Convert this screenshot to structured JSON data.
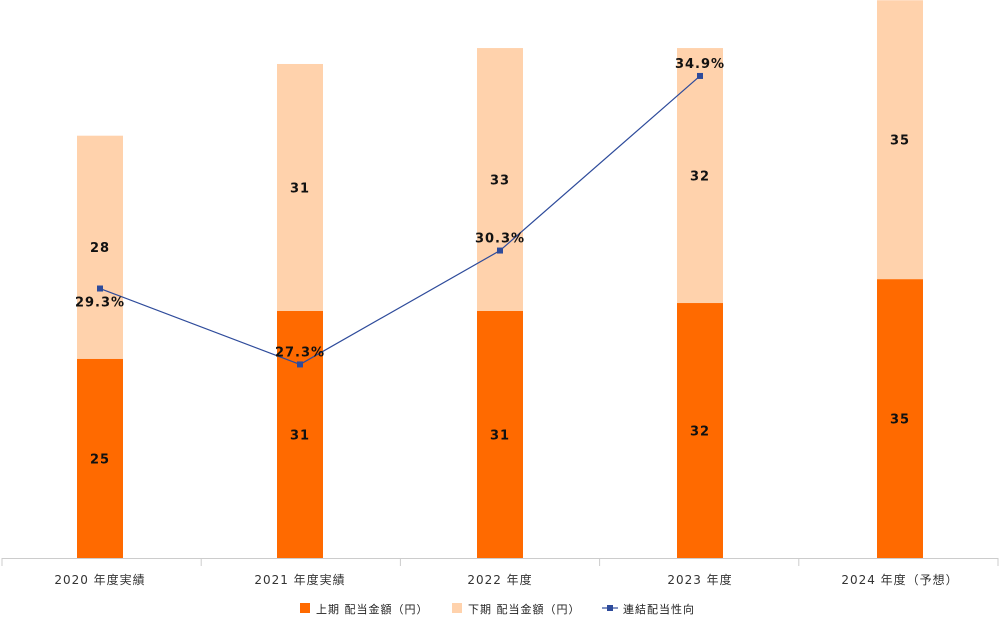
{
  "chart_data": {
    "type": "bar",
    "stacked": true,
    "categories": [
      "2020 年度実績",
      "2021 年度実績",
      "2022 年度",
      "2023 年度",
      "2024 年度（予想）"
    ],
    "series": [
      {
        "name": "上期 配当金額（円）",
        "kind": "bar",
        "color": "#ff6a00",
        "values": [
          25,
          31,
          31,
          32,
          35
        ]
      },
      {
        "name": "下期 配当金額（円）",
        "kind": "bar",
        "color": "#ffd2ac",
        "values": [
          28,
          31,
          33,
          32,
          35
        ]
      },
      {
        "name": "連結配当性向",
        "kind": "line",
        "color": "#2e4b9b",
        "values": [
          29.3,
          27.3,
          30.3,
          34.9,
          null
        ],
        "labels": [
          "29.3%",
          "27.3%",
          "30.3%",
          "34.9%",
          null
        ]
      }
    ],
    "ylim": [
      0,
      70
    ],
    "line_ylim": [
      22.2,
      35.9
    ],
    "legend": {
      "position": "bottom",
      "entries": [
        "上期 配当金額（円）",
        "下期 配当金額（円）",
        "連結配当性向"
      ]
    },
    "colors": {
      "first_half": "#ff6a00",
      "second_half": "#ffd2ac",
      "payout_line": "#2e4b9b",
      "axis": "#cccccc"
    }
  }
}
